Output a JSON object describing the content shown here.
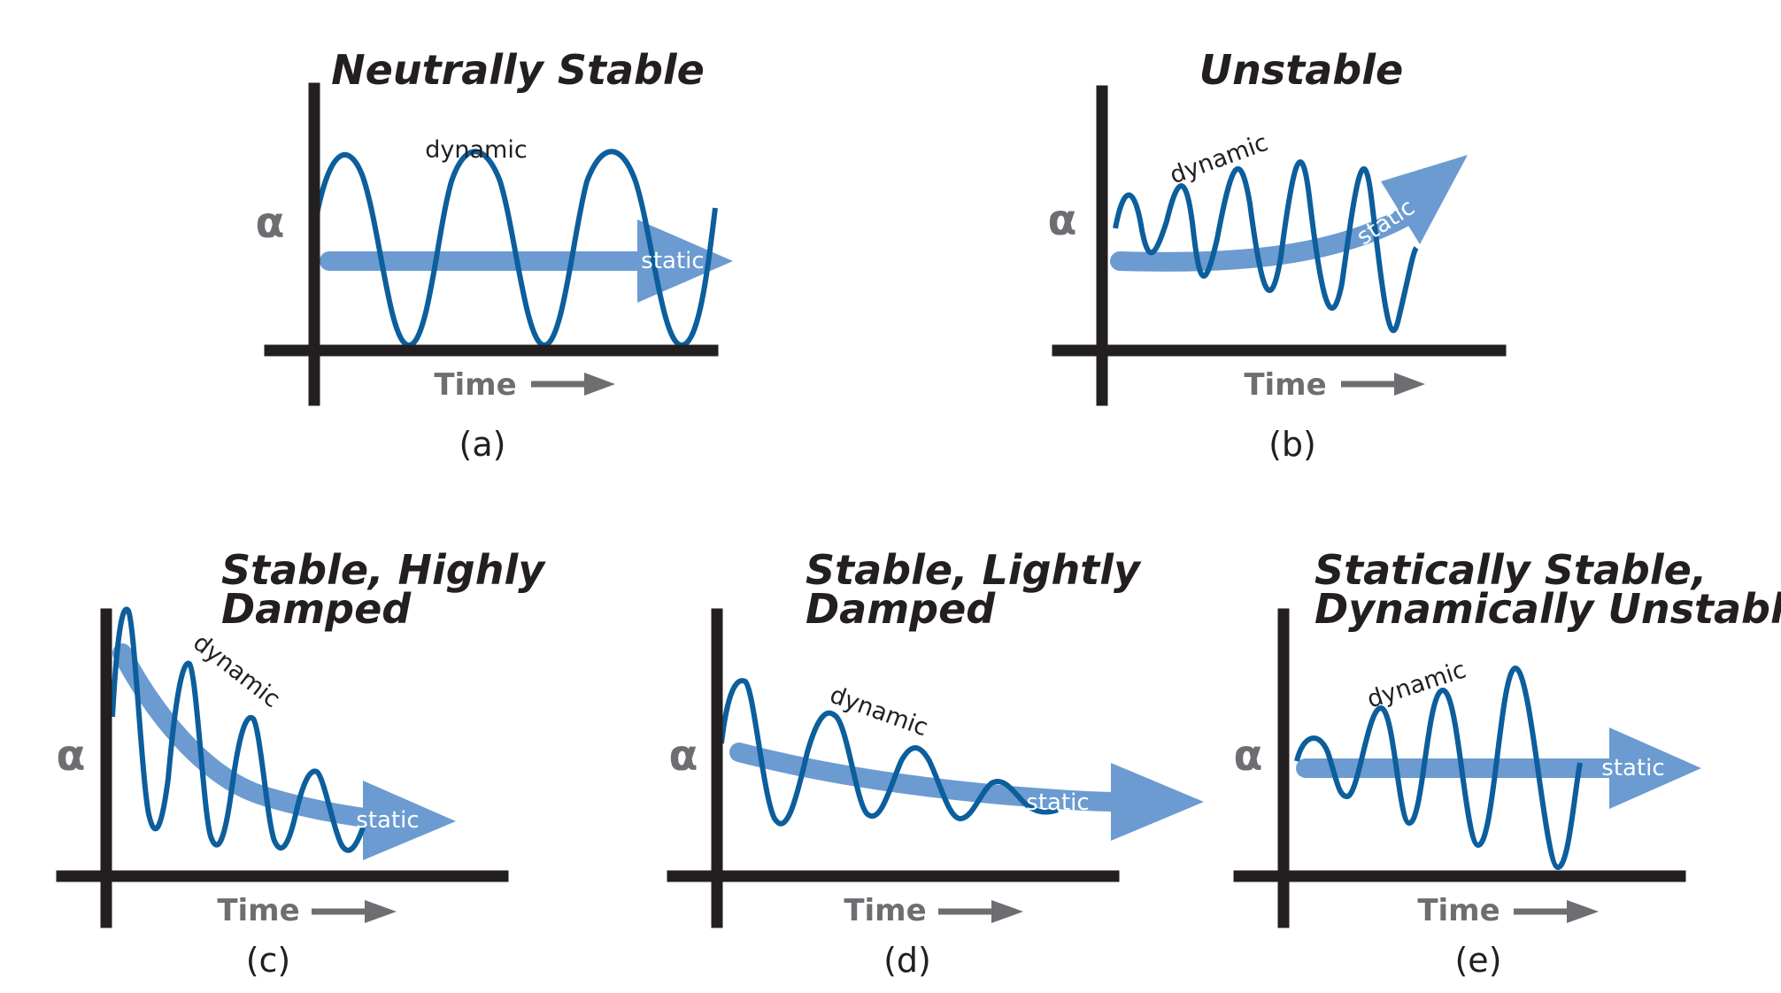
{
  "panels": [
    {
      "id": "a",
      "title": [
        "Neutrally Stable"
      ],
      "dynamic_label": "dynamic",
      "static_label": "static",
      "alpha_label": "α",
      "time_label": "Time",
      "caption": "(a)"
    },
    {
      "id": "b",
      "title": [
        "Unstable"
      ],
      "dynamic_label": "dynamic",
      "static_label": "static",
      "alpha_label": "α",
      "time_label": "Time",
      "caption": "(b)"
    },
    {
      "id": "c",
      "title": [
        "Stable, Highly",
        "Damped"
      ],
      "dynamic_label": "dynamic",
      "static_label": "static",
      "alpha_label": "α",
      "time_label": "Time",
      "caption": "(c)"
    },
    {
      "id": "d",
      "title": [
        "Stable, Lightly",
        "Damped"
      ],
      "dynamic_label": "dynamic",
      "static_label": "static",
      "alpha_label": "α",
      "time_label": "Time",
      "caption": "(d)"
    },
    {
      "id": "e",
      "title": [
        "Statically Stable,",
        "Dynamically Unstable"
      ],
      "dynamic_label": "dynamic",
      "static_label": "static",
      "alpha_label": "α",
      "time_label": "Time",
      "caption": "(e)"
    }
  ],
  "colors": {
    "wave": "#0c5e9c",
    "static_arrow": "#6b9bd1",
    "axis": "#231f20",
    "label_gray": "#6d6e71"
  }
}
